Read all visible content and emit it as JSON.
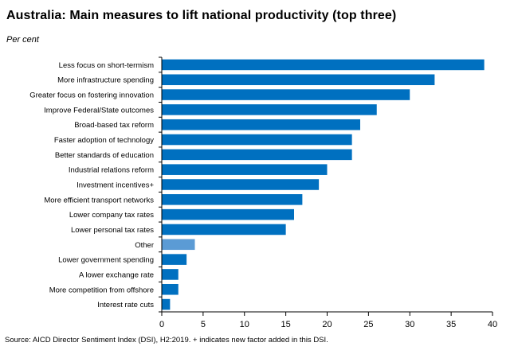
{
  "title": "Australia: Main measures to lift national productivity (top three)",
  "subtitle": "Per cent",
  "source": "Source: AICD Director Sentiment Index (DSI), H2:2019. + indicates new factor added in this DSI.",
  "colors": {
    "bar": "#0070c0",
    "bar_highlight": "#5b9bd5",
    "axis": "#000000"
  },
  "chart_data": {
    "type": "bar",
    "orientation": "horizontal",
    "title": "Australia: Main measures to lift national productivity (top three)",
    "ylabel": "Per cent",
    "xlim": [
      0,
      40
    ],
    "xticks": [
      0,
      5,
      10,
      15,
      20,
      25,
      30,
      35,
      40
    ],
    "categories": [
      "Less focus on short-termism",
      "More infrastructure spending",
      "Greater focus on fostering innovation",
      "Improve Federal/State outcomes",
      "Broad-based tax reform",
      "Faster adoption of technology",
      "Better standards of education",
      "Industrial relations reform",
      "Investment incentives+",
      "More efficient transport networks",
      "Lower company tax rates",
      "Lower personal tax rates",
      "Other",
      "Lower government spending",
      "A lower exchange rate",
      "More competition from offshore",
      "Interest rate cuts"
    ],
    "values": [
      39,
      33,
      30,
      26,
      24,
      23,
      23,
      20,
      19,
      17,
      16,
      15,
      4,
      3,
      2,
      2,
      1
    ],
    "highlight": [
      "Other"
    ],
    "grid": false
  }
}
